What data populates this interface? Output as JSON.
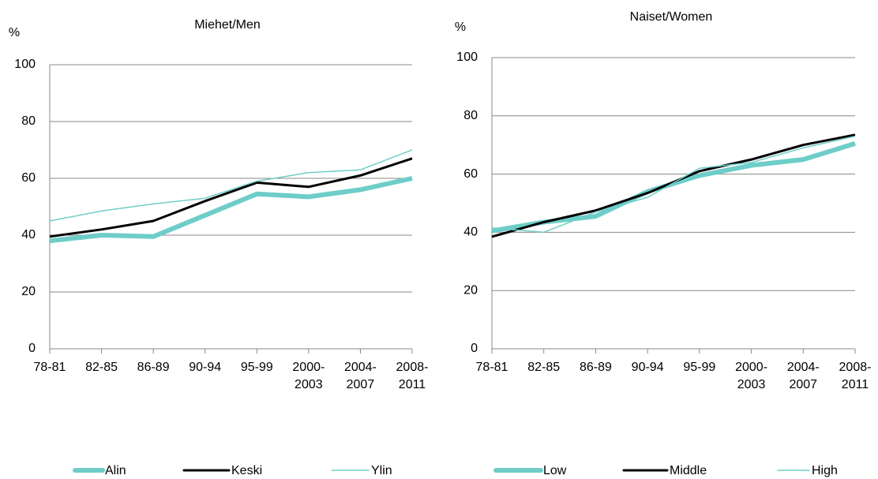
{
  "chart_data": [
    {
      "type": "line",
      "title": "Miehet/Men",
      "y_label": "%",
      "categories": [
        "78-81",
        "82-85",
        "86-89",
        "90-94",
        "95-99",
        "2000-\n2003",
        "2004-\n2007",
        "2008-\n2011"
      ],
      "ylim": [
        0,
        100
      ],
      "yticks": [
        0,
        20,
        40,
        60,
        80,
        100
      ],
      "grid": true,
      "series": [
        {
          "name": "Alin",
          "color": "#6ecdc8",
          "values": [
            38,
            40,
            39.5,
            47,
            54.5,
            53.5,
            56,
            60
          ]
        },
        {
          "name": "Keski",
          "color": "#000000",
          "values": [
            39.5,
            42,
            45,
            52,
            58.5,
            57,
            61,
            67
          ]
        },
        {
          "name": "Ylin",
          "color": "#6ecdc8",
          "values": [
            45,
            48.5,
            51,
            53,
            59,
            62,
            63,
            70
          ]
        }
      ]
    },
    {
      "type": "line",
      "title": "Naiset/Women",
      "y_label": "%",
      "categories": [
        "78-81",
        "82-85",
        "86-89",
        "90-94",
        "95-99",
        "2000-\n2003",
        "2004-\n2007",
        "2008-\n2011"
      ],
      "ylim": [
        0,
        100
      ],
      "yticks": [
        0,
        20,
        40,
        60,
        80,
        100
      ],
      "grid": true,
      "series": [
        {
          "name": "Low",
          "color": "#6ecdc8",
          "values": [
            40.5,
            43.5,
            45.5,
            54,
            59.5,
            63,
            65,
            70.5
          ]
        },
        {
          "name": "Middle",
          "color": "#000000",
          "values": [
            38.5,
            43.5,
            47.5,
            53.5,
            61,
            65,
            70,
            73.5
          ]
        },
        {
          "name": "High",
          "color": "#6ecdc8",
          "values": [
            41.5,
            40,
            47,
            52,
            62,
            64,
            69,
            73
          ]
        }
      ]
    }
  ]
}
